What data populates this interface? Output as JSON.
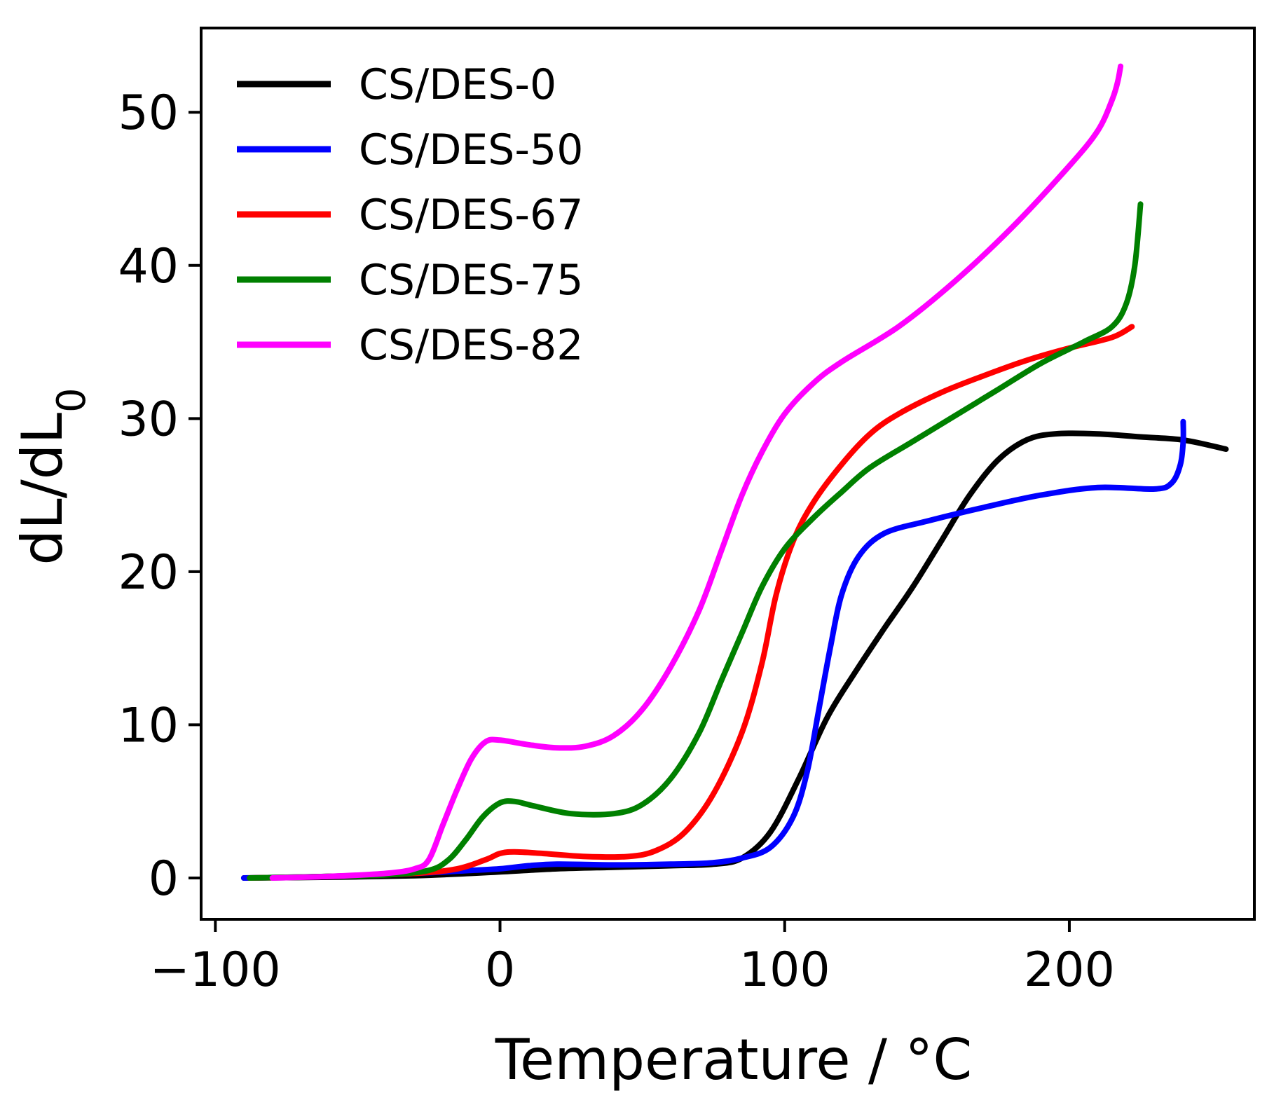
{
  "chart_data": {
    "type": "line",
    "xlabel": "Temperature / °C",
    "ylabel": {
      "main": "dL/dL",
      "subscript": "0"
    },
    "xlim": [
      -105,
      265
    ],
    "ylim": [
      -2.7,
      55.5
    ],
    "xticks": [
      -100,
      0,
      100,
      200
    ],
    "xtick_labels": [
      "−100",
      "0",
      "100",
      "200"
    ],
    "yticks": [
      0,
      10,
      20,
      30,
      40,
      50
    ],
    "ytick_labels": [
      "0",
      "10",
      "20",
      "30",
      "40",
      "50"
    ],
    "grid": false,
    "legend_position": "upper-left",
    "series": [
      {
        "name": "CS/DES-0",
        "color": "#000000",
        "points": [
          [
            -90,
            0
          ],
          [
            -60,
            0.05
          ],
          [
            -30,
            0.15
          ],
          [
            -10,
            0.3
          ],
          [
            0,
            0.4
          ],
          [
            20,
            0.6
          ],
          [
            40,
            0.7
          ],
          [
            60,
            0.8
          ],
          [
            75,
            0.9
          ],
          [
            85,
            1.3
          ],
          [
            95,
            3.0
          ],
          [
            105,
            6.5
          ],
          [
            115,
            10.5
          ],
          [
            125,
            13.5
          ],
          [
            135,
            16.3
          ],
          [
            145,
            19.0
          ],
          [
            155,
            22.0
          ],
          [
            165,
            25.0
          ],
          [
            175,
            27.3
          ],
          [
            185,
            28.6
          ],
          [
            195,
            29.0
          ],
          [
            210,
            29.0
          ],
          [
            225,
            28.8
          ],
          [
            240,
            28.6
          ],
          [
            255,
            28.0
          ]
        ]
      },
      {
        "name": "CS/DES-50",
        "color": "#0000ff",
        "points": [
          [
            -90,
            0
          ],
          [
            -60,
            0.1
          ],
          [
            -30,
            0.3
          ],
          [
            -10,
            0.5
          ],
          [
            0,
            0.6
          ],
          [
            10,
            0.8
          ],
          [
            20,
            0.9
          ],
          [
            40,
            0.85
          ],
          [
            60,
            0.9
          ],
          [
            75,
            1.0
          ],
          [
            85,
            1.3
          ],
          [
            95,
            2.0
          ],
          [
            103,
            4.0
          ],
          [
            108,
            7.0
          ],
          [
            112,
            11.0
          ],
          [
            116,
            15.0
          ],
          [
            120,
            18.5
          ],
          [
            126,
            21.0
          ],
          [
            135,
            22.5
          ],
          [
            150,
            23.3
          ],
          [
            170,
            24.2
          ],
          [
            190,
            25.0
          ],
          [
            210,
            25.5
          ],
          [
            230,
            25.4
          ],
          [
            236,
            25.8
          ],
          [
            239,
            27.0
          ],
          [
            240,
            28.5
          ],
          [
            240,
            29.8
          ]
        ]
      },
      {
        "name": "CS/DES-67",
        "color": "#ff0000",
        "points": [
          [
            -88,
            0
          ],
          [
            -60,
            0.1
          ],
          [
            -30,
            0.3
          ],
          [
            -15,
            0.6
          ],
          [
            -5,
            1.2
          ],
          [
            0,
            1.6
          ],
          [
            5,
            1.7
          ],
          [
            15,
            1.6
          ],
          [
            30,
            1.4
          ],
          [
            45,
            1.4
          ],
          [
            55,
            1.8
          ],
          [
            65,
            3.0
          ],
          [
            75,
            5.5
          ],
          [
            85,
            9.5
          ],
          [
            92,
            14.0
          ],
          [
            97,
            18.5
          ],
          [
            103,
            22.0
          ],
          [
            110,
            24.5
          ],
          [
            120,
            27.0
          ],
          [
            130,
            29.0
          ],
          [
            140,
            30.3
          ],
          [
            155,
            31.7
          ],
          [
            170,
            32.8
          ],
          [
            185,
            33.8
          ],
          [
            200,
            34.6
          ],
          [
            215,
            35.3
          ],
          [
            222,
            36.0
          ]
        ]
      },
      {
        "name": "CS/DES-75",
        "color": "#008000",
        "points": [
          [
            -88,
            0
          ],
          [
            -60,
            0.1
          ],
          [
            -40,
            0.2
          ],
          [
            -25,
            0.5
          ],
          [
            -18,
            1.2
          ],
          [
            -12,
            2.5
          ],
          [
            -6,
            4.0
          ],
          [
            0,
            4.9
          ],
          [
            5,
            5.0
          ],
          [
            12,
            4.7
          ],
          [
            25,
            4.2
          ],
          [
            40,
            4.2
          ],
          [
            50,
            4.8
          ],
          [
            60,
            6.5
          ],
          [
            70,
            9.5
          ],
          [
            78,
            13.0
          ],
          [
            85,
            16.0
          ],
          [
            92,
            19.0
          ],
          [
            100,
            21.5
          ],
          [
            110,
            23.5
          ],
          [
            120,
            25.2
          ],
          [
            130,
            26.8
          ],
          [
            145,
            28.5
          ],
          [
            160,
            30.2
          ],
          [
            175,
            31.9
          ],
          [
            190,
            33.6
          ],
          [
            205,
            35.0
          ],
          [
            215,
            36.0
          ],
          [
            220,
            37.5
          ],
          [
            223,
            40.0
          ],
          [
            225,
            44.0
          ]
        ]
      },
      {
        "name": "CS/DES-82",
        "color": "#ff00ff",
        "points": [
          [
            -80,
            0
          ],
          [
            -60,
            0.1
          ],
          [
            -40,
            0.3
          ],
          [
            -30,
            0.6
          ],
          [
            -25,
            1.2
          ],
          [
            -20,
            3.5
          ],
          [
            -15,
            5.8
          ],
          [
            -10,
            7.8
          ],
          [
            -5,
            8.9
          ],
          [
            0,
            9.0
          ],
          [
            10,
            8.7
          ],
          [
            20,
            8.5
          ],
          [
            30,
            8.6
          ],
          [
            40,
            9.3
          ],
          [
            50,
            11.0
          ],
          [
            60,
            13.8
          ],
          [
            70,
            17.5
          ],
          [
            78,
            21.5
          ],
          [
            85,
            25.0
          ],
          [
            92,
            27.8
          ],
          [
            100,
            30.3
          ],
          [
            110,
            32.3
          ],
          [
            120,
            33.7
          ],
          [
            140,
            36.0
          ],
          [
            160,
            39.0
          ],
          [
            180,
            42.5
          ],
          [
            200,
            46.5
          ],
          [
            210,
            48.8
          ],
          [
            215,
            50.8
          ],
          [
            217,
            52.0
          ],
          [
            218,
            53.0
          ]
        ]
      }
    ]
  }
}
